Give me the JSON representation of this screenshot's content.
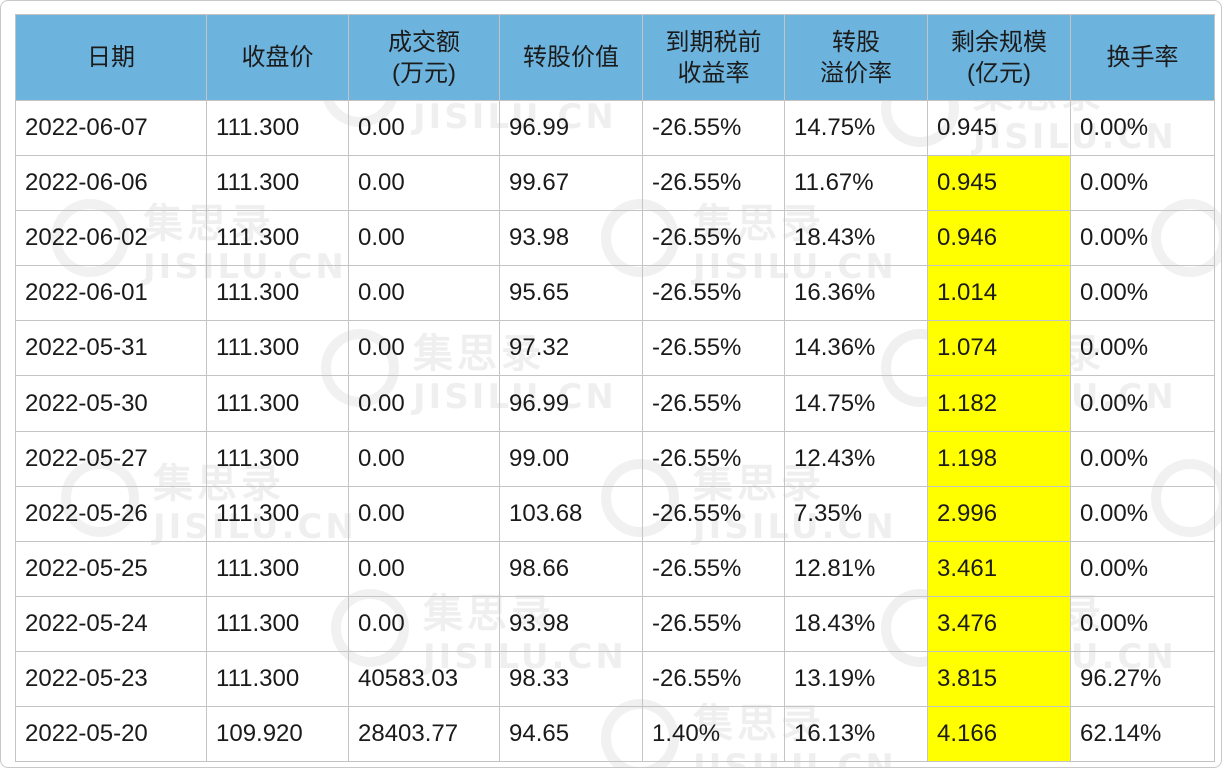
{
  "colors": {
    "header_bg": "#6cb3de",
    "negative_yield": "#1f8a1f",
    "positive_yield": "#e0141e",
    "highlight": "#ffff00"
  },
  "watermark": {
    "cn": "集思录",
    "en": "JISILU.CN"
  },
  "headers": [
    {
      "l1": "日期",
      "l2": ""
    },
    {
      "l1": "收盘价",
      "l2": ""
    },
    {
      "l1": "成交额",
      "l2": "(万元)"
    },
    {
      "l1": "转股价值",
      "l2": ""
    },
    {
      "l1": "到期税前",
      "l2": "收益率"
    },
    {
      "l1": "转股",
      "l2": "溢价率"
    },
    {
      "l1": "剩余规模",
      "l2": "(亿元)"
    },
    {
      "l1": "换手率",
      "l2": ""
    }
  ],
  "rows": [
    {
      "date": "2022-06-07",
      "close": "111.300",
      "volume": "0.00",
      "conv_value": "96.99",
      "ytm": "-26.55%",
      "ytm_sign": "neg",
      "premium": "14.75%",
      "remaining": "0.945",
      "highlight": false,
      "turnover": "0.00%"
    },
    {
      "date": "2022-06-06",
      "close": "111.300",
      "volume": "0.00",
      "conv_value": "99.67",
      "ytm": "-26.55%",
      "ytm_sign": "neg",
      "premium": "11.67%",
      "remaining": "0.945",
      "highlight": true,
      "turnover": "0.00%"
    },
    {
      "date": "2022-06-02",
      "close": "111.300",
      "volume": "0.00",
      "conv_value": "93.98",
      "ytm": "-26.55%",
      "ytm_sign": "neg",
      "premium": "18.43%",
      "remaining": "0.946",
      "highlight": true,
      "turnover": "0.00%"
    },
    {
      "date": "2022-06-01",
      "close": "111.300",
      "volume": "0.00",
      "conv_value": "95.65",
      "ytm": "-26.55%",
      "ytm_sign": "neg",
      "premium": "16.36%",
      "remaining": "1.014",
      "highlight": true,
      "turnover": "0.00%"
    },
    {
      "date": "2022-05-31",
      "close": "111.300",
      "volume": "0.00",
      "conv_value": "97.32",
      "ytm": "-26.55%",
      "ytm_sign": "neg",
      "premium": "14.36%",
      "remaining": "1.074",
      "highlight": true,
      "turnover": "0.00%"
    },
    {
      "date": "2022-05-30",
      "close": "111.300",
      "volume": "0.00",
      "conv_value": "96.99",
      "ytm": "-26.55%",
      "ytm_sign": "neg",
      "premium": "14.75%",
      "remaining": "1.182",
      "highlight": true,
      "turnover": "0.00%"
    },
    {
      "date": "2022-05-27",
      "close": "111.300",
      "volume": "0.00",
      "conv_value": "99.00",
      "ytm": "-26.55%",
      "ytm_sign": "neg",
      "premium": "12.43%",
      "remaining": "1.198",
      "highlight": true,
      "turnover": "0.00%"
    },
    {
      "date": "2022-05-26",
      "close": "111.300",
      "volume": "0.00",
      "conv_value": "103.68",
      "ytm": "-26.55%",
      "ytm_sign": "neg",
      "premium": "7.35%",
      "remaining": "2.996",
      "highlight": true,
      "turnover": "0.00%"
    },
    {
      "date": "2022-05-25",
      "close": "111.300",
      "volume": "0.00",
      "conv_value": "98.66",
      "ytm": "-26.55%",
      "ytm_sign": "neg",
      "premium": "12.81%",
      "remaining": "3.461",
      "highlight": true,
      "turnover": "0.00%"
    },
    {
      "date": "2022-05-24",
      "close": "111.300",
      "volume": "0.00",
      "conv_value": "93.98",
      "ytm": "-26.55%",
      "ytm_sign": "neg",
      "premium": "18.43%",
      "remaining": "3.476",
      "highlight": true,
      "turnover": "0.00%"
    },
    {
      "date": "2022-05-23",
      "close": "111.300",
      "volume": "40583.03",
      "conv_value": "98.33",
      "ytm": "-26.55%",
      "ytm_sign": "neg",
      "premium": "13.19%",
      "remaining": "3.815",
      "highlight": true,
      "turnover": "96.27%"
    },
    {
      "date": "2022-05-20",
      "close": "109.920",
      "volume": "28403.77",
      "conv_value": "94.65",
      "ytm": "1.40%",
      "ytm_sign": "pos",
      "premium": "16.13%",
      "remaining": "4.166",
      "highlight": true,
      "turnover": "62.14%"
    }
  ]
}
